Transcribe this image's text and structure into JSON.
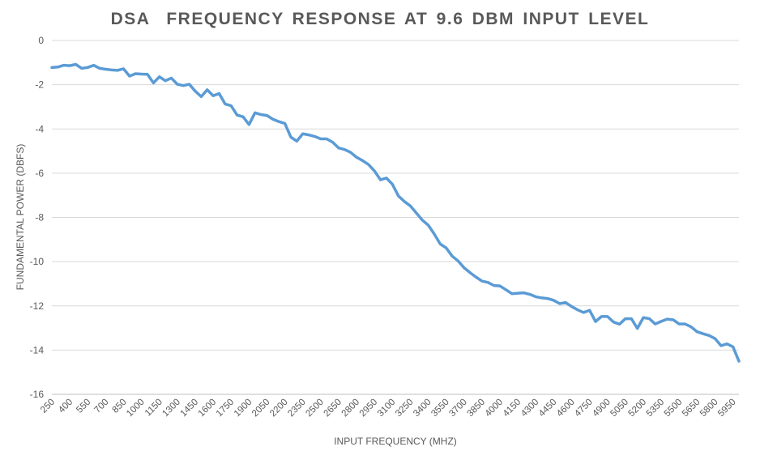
{
  "chart_data": {
    "type": "line",
    "title": "DSA  FREQUENCY RESPONSE AT 9.6 DBM INPUT LEVEL",
    "xlabel": "INPUT FREQUENCY (MHZ)",
    "ylabel": "FUNDAMENTAL POWER (DBFS)",
    "ylim": [
      -16,
      0
    ],
    "yticks": [
      0,
      -2,
      -4,
      -6,
      -8,
      -10,
      -12,
      -14,
      -16
    ],
    "xlim": [
      250,
      6000
    ],
    "xtick_labels": [
      "250",
      "400",
      "550",
      "700",
      "850",
      "1000",
      "1150",
      "1300",
      "1450",
      "1600",
      "1750",
      "1900",
      "2050",
      "2200",
      "2350",
      "2500",
      "2650",
      "2800",
      "2950",
      "3100",
      "3250",
      "3400",
      "3550",
      "3700",
      "3850",
      "4000",
      "4150",
      "4300",
      "4450",
      "4600",
      "4750",
      "4900",
      "5050",
      "5200",
      "5350",
      "5500",
      "5650",
      "5800",
      "5950"
    ],
    "grid": true,
    "line_color": "#5b9bd5",
    "series": [
      {
        "x": [
          250,
          300,
          350,
          400,
          450,
          500,
          550,
          600,
          650,
          700,
          750,
          800,
          850,
          900,
          950,
          1000,
          1050,
          1100,
          1150,
          1200,
          1250,
          1300,
          1350,
          1400,
          1450,
          1500,
          1550,
          1600,
          1650,
          1700,
          1750,
          1800,
          1850,
          1900,
          1950,
          2000,
          2050,
          2100,
          2150,
          2200,
          2250,
          2300,
          2350,
          2400,
          2450,
          2500,
          2550,
          2600,
          2650,
          2700,
          2750,
          2800,
          2850,
          2900,
          2950,
          3000,
          3050,
          3100,
          3150,
          3200,
          3250,
          3300,
          3350,
          3400,
          3450,
          3500,
          3550,
          3600,
          3650,
          3700,
          3750,
          3800,
          3850,
          3900,
          3950,
          4000,
          4050,
          4100,
          4150,
          4200,
          4250,
          4300,
          4350,
          4400,
          4450,
          4500,
          4550,
          4600,
          4650,
          4700,
          4750,
          4800,
          4850,
          4900,
          4950,
          5000,
          5050,
          5100,
          5150,
          5200,
          5250,
          5300,
          5350,
          5400,
          5450,
          5500,
          5550,
          5600,
          5650,
          5700,
          5750,
          5800,
          5850,
          5900,
          5950,
          6000
        ],
        "values": [
          -1.22,
          -1.2,
          -1.12,
          -1.14,
          -1.08,
          -1.26,
          -1.22,
          -1.12,
          -1.26,
          -1.3,
          -1.33,
          -1.35,
          -1.28,
          -1.61,
          -1.5,
          -1.52,
          -1.53,
          -1.92,
          -1.64,
          -1.82,
          -1.7,
          -1.98,
          -2.04,
          -1.98,
          -2.29,
          -2.54,
          -2.23,
          -2.5,
          -2.4,
          -2.87,
          -2.95,
          -3.37,
          -3.45,
          -3.8,
          -3.27,
          -3.35,
          -3.39,
          -3.56,
          -3.67,
          -3.75,
          -4.37,
          -4.55,
          -4.22,
          -4.27,
          -4.34,
          -4.45,
          -4.45,
          -4.6,
          -4.86,
          -4.93,
          -5.06,
          -5.28,
          -5.43,
          -5.61,
          -5.9,
          -6.3,
          -6.22,
          -6.5,
          -7.03,
          -7.28,
          -7.48,
          -7.8,
          -8.12,
          -8.35,
          -8.75,
          -9.2,
          -9.38,
          -9.75,
          -9.97,
          -10.28,
          -10.5,
          -10.7,
          -10.88,
          -10.94,
          -11.08,
          -11.1,
          -11.27,
          -11.45,
          -11.43,
          -11.41,
          -11.48,
          -11.59,
          -11.64,
          -11.67,
          -11.75,
          -11.9,
          -11.85,
          -12.03,
          -12.18,
          -12.3,
          -12.2,
          -12.71,
          -12.48,
          -12.48,
          -12.73,
          -12.83,
          -12.58,
          -12.58,
          -13.02,
          -12.53,
          -12.58,
          -12.82,
          -12.7,
          -12.6,
          -12.63,
          -12.82,
          -12.82,
          -12.95,
          -13.17,
          -13.26,
          -13.34,
          -13.48,
          -13.8,
          -13.72,
          -13.85,
          -14.5
        ]
      }
    ]
  }
}
